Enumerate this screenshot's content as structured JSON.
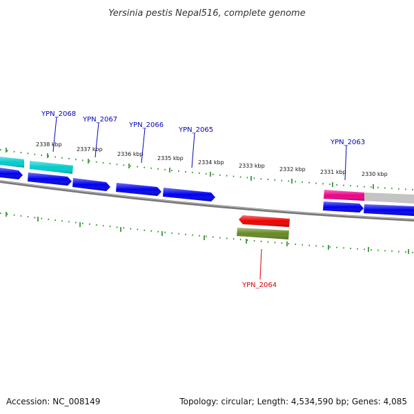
{
  "title": "Yersinia pestis Nepal516, complete genome",
  "footer": {
    "accession": "Accession: NC_008149",
    "topology": "Topology: circular; Length: 4,534,590 bp; Genes: 4,085"
  },
  "colors": {
    "forward_cds": "#0000ee",
    "highlight_cds": "#00cccc",
    "rna": "#ee0088",
    "selected_reverse": "#ee0000",
    "reverse_cds": "#668822",
    "backbone": "#888888",
    "ticks": "#228822",
    "label_forward": "#0000bb",
    "label_reverse": "#dd0000"
  },
  "scale": {
    "ticks": [
      {
        "label": "2338 kbp"
      },
      {
        "label": "2337 kbp"
      },
      {
        "label": "2336 kbp"
      },
      {
        "label": "2335 kbp"
      },
      {
        "label": "2334 kbp"
      },
      {
        "label": "2333 kbp"
      },
      {
        "label": "2332 kbp"
      },
      {
        "label": "2331 kbp"
      },
      {
        "label": "2330 kbp"
      }
    ]
  },
  "gene_labels": [
    {
      "id": "YPN_2068"
    },
    {
      "id": "YPN_2067"
    },
    {
      "id": "YPN_2066"
    },
    {
      "id": "YPN_2065"
    },
    {
      "id": "YPN_2063"
    },
    {
      "id": "YPN_2064"
    }
  ]
}
